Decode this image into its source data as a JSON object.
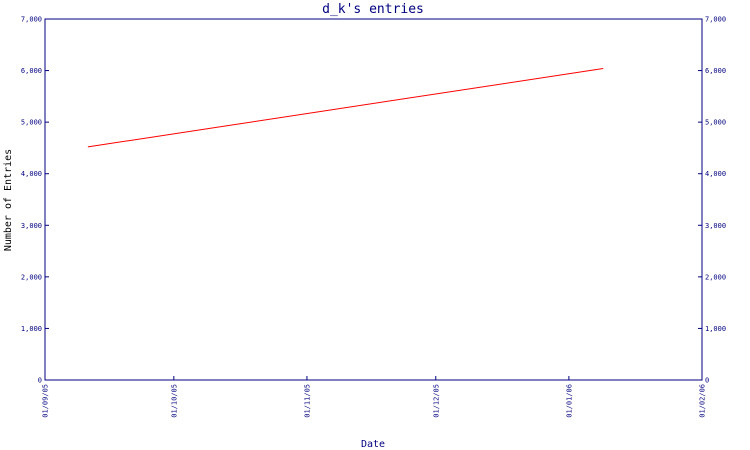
{
  "chart_data": {
    "type": "line",
    "title": "d_k's entries",
    "xlabel": "Date",
    "ylabel": "Number of Entries",
    "ylim": [
      0,
      7000
    ],
    "yticks": [
      0,
      1000,
      2000,
      3000,
      4000,
      5000,
      6000,
      7000
    ],
    "ytick_labels": [
      "0",
      "1,000",
      "2,000",
      "3,000",
      "4,000",
      "5,000",
      "6,000",
      "7,000"
    ],
    "xlim": [
      "2005-09-01",
      "2006-02-01"
    ],
    "xticks": [
      "2005-09-01",
      "2005-10-01",
      "2005-11-01",
      "2005-12-01",
      "2006-01-01",
      "2006-02-01"
    ],
    "xtick_labels": [
      "01/09/05",
      "01/10/05",
      "01/11/05",
      "01/12/05",
      "01/01/06",
      "01/02/06"
    ],
    "grid": false,
    "colors": {
      "axis": "#000080",
      "line": "#ff0000"
    },
    "series": [
      {
        "x": [
          "2005-09-11",
          "2006-01-09"
        ],
        "y": [
          4520,
          6040
        ]
      }
    ]
  }
}
